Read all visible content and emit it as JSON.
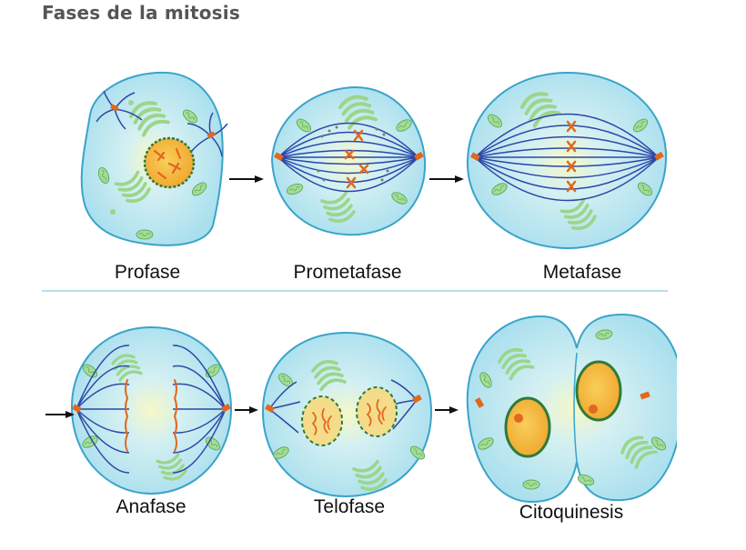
{
  "title": "Fases de la mitosis",
  "stages": [
    {
      "id": "profase",
      "label": "Profase"
    },
    {
      "id": "prometafase",
      "label": "Prometafase"
    },
    {
      "id": "metafase",
      "label": "Metafase"
    },
    {
      "id": "anafase",
      "label": "Anafase"
    },
    {
      "id": "telofase",
      "label": "Telofase"
    },
    {
      "id": "citoquinesis",
      "label": "Citoquinesis"
    }
  ],
  "colors": {
    "cytoplasm": "#bfe9f3",
    "cell_border": "#3aa4c9",
    "spindle": "#2c46a8",
    "chromosome": "#e2671f",
    "nucleus": "#f3b43a",
    "nuclear_envelope": "#2f7a3a",
    "organelle": "#8fd28a",
    "arrow": "#111111",
    "divider": "#9ed3ea"
  }
}
